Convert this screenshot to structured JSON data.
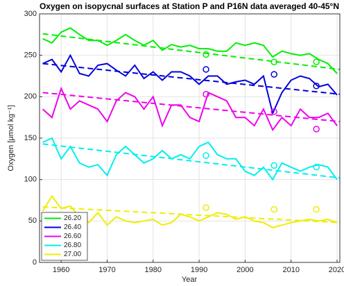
{
  "chart_data": {
    "type": "line",
    "title": "Oxygen on isopycnal surfaces at Station P and P16N data averaged 40-45°N",
    "xlabel": "Year",
    "ylabel": "Oxygen [μmol kg⁻¹]",
    "x": [
      1956,
      1958,
      1960,
      1962,
      1964,
      1966,
      1968,
      1970,
      1972,
      1974,
      1976,
      1978,
      1980,
      1982,
      1984,
      1986,
      1988,
      1990,
      1992,
      1994,
      1996,
      1998,
      2000,
      2002,
      2004,
      2006,
      2008,
      2010,
      2012,
      2014,
      2016,
      2018,
      2020
    ],
    "trend_x": [
      1956,
      2020.6
    ],
    "p16n_x": [
      1991.5,
      2006.3,
      2015.5
    ],
    "series": [
      {
        "name": "26.20",
        "color": "#00ee00",
        "values": [
          270,
          265,
          278,
          283,
          275,
          268,
          268,
          262,
          268,
          275,
          268,
          262,
          268,
          256,
          263,
          260,
          262,
          258,
          258,
          255,
          255,
          265,
          262,
          265,
          262,
          248,
          255,
          252,
          250,
          252,
          245,
          240,
          228
        ],
        "trend_values": [
          276,
          233
        ],
        "p16n_values": [
          251,
          242,
          242
        ]
      },
      {
        "name": "26.40",
        "color": "#0000dd",
        "values": [
          240,
          245,
          230,
          250,
          228,
          225,
          238,
          240,
          232,
          225,
          238,
          222,
          230,
          220,
          230,
          230,
          225,
          215,
          225,
          225,
          215,
          218,
          220,
          215,
          225,
          180,
          205,
          220,
          225,
          222,
          212,
          215,
          202
        ],
        "trend_values": [
          240,
          203
        ],
        "p16n_values": [
          233,
          227,
          213
        ]
      },
      {
        "name": "26.60",
        "color": "#ee00ee",
        "values": [
          185,
          175,
          210,
          185,
          195,
          190,
          185,
          170,
          195,
          205,
          200,
          185,
          200,
          165,
          190,
          190,
          175,
          170,
          205,
          200,
          195,
          175,
          175,
          165,
          185,
          160,
          175,
          165,
          185,
          175,
          175,
          180,
          165
        ],
        "trend_values": [
          205,
          170
        ],
        "p16n_values": [
          203,
          182,
          161
        ]
      },
      {
        "name": "26.80",
        "color": "#00eeee",
        "values": [
          145,
          150,
          125,
          140,
          120,
          115,
          118,
          105,
          130,
          140,
          130,
          120,
          125,
          135,
          125,
          130,
          125,
          140,
          145,
          130,
          125,
          125,
          110,
          105,
          115,
          100,
          120,
          115,
          110,
          115,
          118,
          115,
          100
        ],
        "trend_values": [
          143,
          102
        ],
        "p16n_values": [
          129,
          117,
          115
        ]
      },
      {
        "name": "27.00",
        "color": "#eeee00",
        "values": [
          62,
          80,
          65,
          68,
          55,
          48,
          60,
          45,
          55,
          50,
          48,
          50,
          52,
          45,
          48,
          58,
          55,
          50,
          55,
          60,
          58,
          52,
          55,
          50,
          48,
          42,
          45,
          48,
          50,
          52,
          50,
          52,
          48
        ],
        "trend_values": [
          67,
          48
        ],
        "p16n_values": [
          66,
          64,
          64
        ]
      }
    ],
    "xlim": [
      1955.3,
      2020.6
    ],
    "ylim": [
      0,
      300
    ],
    "xticks": [
      1960,
      1970,
      1980,
      1990,
      2000,
      2010,
      2020
    ],
    "yticks": [
      0,
      50,
      100,
      150,
      200,
      250,
      300
    ],
    "grid": true,
    "legend": "lower-left"
  }
}
